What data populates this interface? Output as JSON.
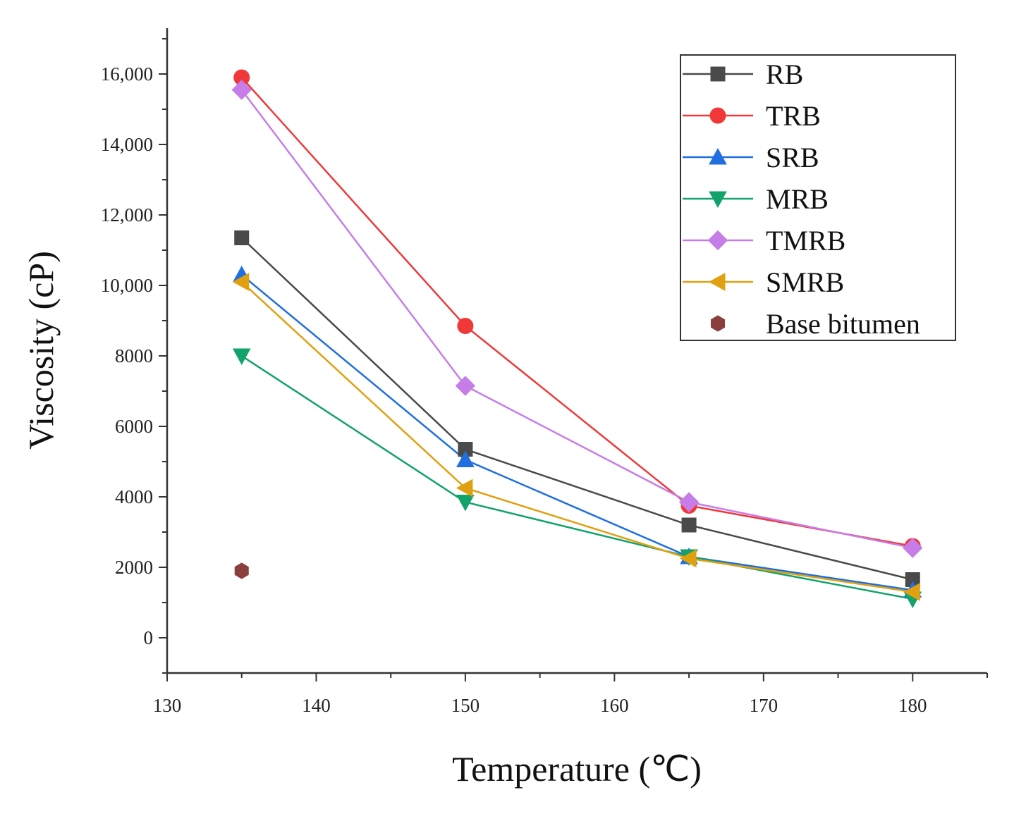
{
  "chart_data": {
    "type": "line",
    "title": "",
    "xlabel": "Temperature (℃)",
    "ylabel": "Viscosity (cP)",
    "xlim": [
      130,
      185
    ],
    "ylim": [
      -1000,
      17300
    ],
    "xticks": [
      130,
      140,
      150,
      160,
      170,
      180
    ],
    "xtick_labels": [
      "130",
      "140",
      "150",
      "160",
      "170",
      "180"
    ],
    "yticks": [
      0,
      2000,
      4000,
      6000,
      8000,
      10000,
      12000,
      14000,
      16000
    ],
    "ytick_labels": [
      "0",
      "2000",
      "4000",
      "6000",
      "8000",
      "10,000",
      "12,000",
      "14,000",
      "16,000"
    ],
    "grid": false,
    "legend_position": "top-right",
    "series": [
      {
        "name": "RB",
        "color": "#4a4a4a",
        "marker": "square",
        "x": [
          135,
          150,
          165,
          180
        ],
        "y": [
          11350,
          5350,
          3200,
          1650
        ]
      },
      {
        "name": "TRB",
        "color": "#f03838",
        "marker": "circle",
        "x": [
          135,
          150,
          165,
          180
        ],
        "y": [
          15900,
          8850,
          3750,
          2600
        ]
      },
      {
        "name": "SRB",
        "color": "#1f6fe0",
        "marker": "triangle-up",
        "x": [
          135,
          150,
          165,
          180
        ],
        "y": [
          10300,
          5050,
          2300,
          1350
        ]
      },
      {
        "name": "MRB",
        "color": "#12a36a",
        "marker": "triangle-down",
        "x": [
          135,
          150,
          165,
          180
        ],
        "y": [
          8000,
          3850,
          2300,
          1100
        ]
      },
      {
        "name": "TMRB",
        "color": "#c77de8",
        "marker": "diamond",
        "x": [
          135,
          150,
          165,
          180
        ],
        "y": [
          15550,
          7150,
          3850,
          2550
        ]
      },
      {
        "name": "SMRB",
        "color": "#e0a010",
        "marker": "triangle-left",
        "x": [
          135,
          150,
          165,
          180
        ],
        "y": [
          10100,
          4250,
          2250,
          1300
        ]
      },
      {
        "name": "Base bitumen",
        "color": "#8a3f3f",
        "marker": "hexagon",
        "x": [
          135
        ],
        "y": [
          1900
        ],
        "no_line": true
      }
    ]
  }
}
